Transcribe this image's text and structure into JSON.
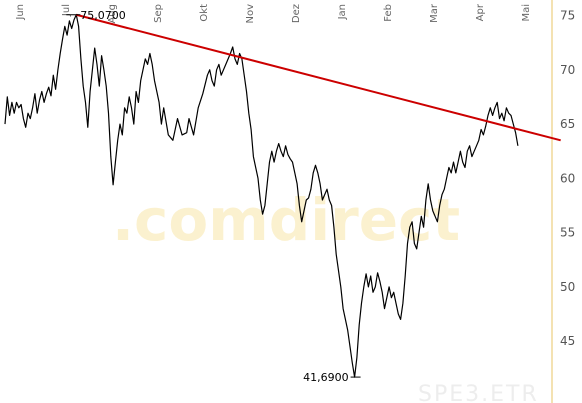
{
  "chart_data": {
    "type": "line",
    "title": "",
    "xlabel": "",
    "ylabel": "",
    "x_tick_labels": [
      "Jun",
      "Jul",
      "Aug",
      "Sep",
      "Okt",
      "Nov",
      "Dez",
      "Jan",
      "Feb",
      "Mar",
      "Apr",
      "Mai"
    ],
    "y_ticks": [
      45,
      50,
      55,
      60,
      65,
      70,
      75
    ],
    "ylim": [
      40.5,
      75.6
    ],
    "xlim": [
      0,
      12.08
    ],
    "grid": false,
    "legend": "none",
    "colors": {
      "price_line": "#000000",
      "trend_line": "#cc0000",
      "axis_line": "#f0d898"
    },
    "series": [
      {
        "values": [
          [
            0.0,
            65.0
          ],
          [
            0.05,
            67.5
          ],
          [
            0.1,
            65.8
          ],
          [
            0.15,
            67.0
          ],
          [
            0.2,
            66.0
          ],
          [
            0.25,
            67.0
          ],
          [
            0.3,
            66.5
          ],
          [
            0.35,
            66.8
          ],
          [
            0.4,
            65.5
          ],
          [
            0.45,
            64.7
          ],
          [
            0.5,
            66.0
          ],
          [
            0.55,
            65.5
          ],
          [
            0.6,
            66.5
          ],
          [
            0.65,
            67.8
          ],
          [
            0.7,
            66.0
          ],
          [
            0.75,
            67.2
          ],
          [
            0.8,
            68.0
          ],
          [
            0.85,
            67.0
          ],
          [
            0.9,
            67.8
          ],
          [
            0.95,
            68.4
          ],
          [
            1.0,
            67.6
          ],
          [
            1.05,
            69.5
          ],
          [
            1.1,
            68.2
          ],
          [
            1.15,
            70.0
          ],
          [
            1.2,
            71.5
          ],
          [
            1.25,
            72.8
          ],
          [
            1.3,
            74.0
          ],
          [
            1.35,
            73.2
          ],
          [
            1.4,
            74.5
          ],
          [
            1.45,
            73.8
          ],
          [
            1.5,
            74.6
          ],
          [
            1.55,
            75.07
          ],
          [
            1.6,
            74.0
          ],
          [
            1.65,
            71.0
          ],
          [
            1.7,
            68.5
          ],
          [
            1.75,
            67.0
          ],
          [
            1.8,
            64.7
          ],
          [
            1.85,
            68.0
          ],
          [
            1.9,
            70.0
          ],
          [
            1.95,
            72.0
          ],
          [
            2.0,
            70.5
          ],
          [
            2.05,
            68.5
          ],
          [
            2.1,
            71.3
          ],
          [
            2.15,
            70.0
          ],
          [
            2.2,
            68.5
          ],
          [
            2.25,
            66.0
          ],
          [
            2.3,
            62.0
          ],
          [
            2.35,
            59.4
          ],
          [
            2.4,
            61.5
          ],
          [
            2.45,
            63.5
          ],
          [
            2.5,
            65.0
          ],
          [
            2.55,
            64.0
          ],
          [
            2.6,
            66.5
          ],
          [
            2.65,
            66.0
          ],
          [
            2.7,
            67.5
          ],
          [
            2.75,
            66.5
          ],
          [
            2.8,
            65.0
          ],
          [
            2.85,
            68.0
          ],
          [
            2.9,
            67.0
          ],
          [
            2.95,
            69.0
          ],
          [
            3.0,
            70.0
          ],
          [
            3.05,
            71.0
          ],
          [
            3.1,
            70.5
          ],
          [
            3.15,
            71.5
          ],
          [
            3.2,
            70.5
          ],
          [
            3.25,
            69.0
          ],
          [
            3.3,
            68.0
          ],
          [
            3.35,
            67.0
          ],
          [
            3.4,
            65.0
          ],
          [
            3.45,
            66.5
          ],
          [
            3.55,
            64.0
          ],
          [
            3.65,
            63.5
          ],
          [
            3.75,
            65.5
          ],
          [
            3.85,
            64.0
          ],
          [
            3.95,
            64.2
          ],
          [
            4.0,
            65.5
          ],
          [
            4.1,
            64.0
          ],
          [
            4.2,
            66.5
          ],
          [
            4.3,
            67.8
          ],
          [
            4.4,
            69.5
          ],
          [
            4.45,
            70.0
          ],
          [
            4.5,
            69.0
          ],
          [
            4.55,
            68.5
          ],
          [
            4.6,
            70.0
          ],
          [
            4.65,
            70.5
          ],
          [
            4.7,
            69.5
          ],
          [
            4.8,
            70.5
          ],
          [
            4.9,
            71.5
          ],
          [
            4.95,
            72.1
          ],
          [
            5.0,
            71.0
          ],
          [
            5.05,
            70.5
          ],
          [
            5.1,
            71.5
          ],
          [
            5.15,
            71.0
          ],
          [
            5.2,
            69.5
          ],
          [
            5.25,
            68.0
          ],
          [
            5.3,
            66.0
          ],
          [
            5.35,
            64.5
          ],
          [
            5.4,
            62.0
          ],
          [
            5.45,
            61.0
          ],
          [
            5.5,
            60.0
          ],
          [
            5.55,
            58.0
          ],
          [
            5.6,
            56.7
          ],
          [
            5.65,
            57.5
          ],
          [
            5.7,
            59.5
          ],
          [
            5.75,
            61.5
          ],
          [
            5.8,
            62.5
          ],
          [
            5.85,
            61.5
          ],
          [
            5.9,
            62.5
          ],
          [
            5.95,
            63.2
          ],
          [
            6.0,
            62.5
          ],
          [
            6.05,
            62.0
          ],
          [
            6.1,
            63.0
          ],
          [
            6.15,
            62.2
          ],
          [
            6.2,
            61.8
          ],
          [
            6.25,
            61.5
          ],
          [
            6.3,
            60.5
          ],
          [
            6.35,
            59.5
          ],
          [
            6.4,
            57.5
          ],
          [
            6.45,
            56.0
          ],
          [
            6.5,
            57.0
          ],
          [
            6.55,
            58.0
          ],
          [
            6.6,
            58.2
          ],
          [
            6.65,
            59.0
          ],
          [
            6.7,
            60.5
          ],
          [
            6.75,
            61.2
          ],
          [
            6.8,
            60.5
          ],
          [
            6.85,
            59.5
          ],
          [
            6.9,
            58.0
          ],
          [
            6.95,
            58.5
          ],
          [
            7.0,
            59.0
          ],
          [
            7.05,
            58.0
          ],
          [
            7.1,
            57.5
          ],
          [
            7.15,
            55.5
          ],
          [
            7.2,
            53.0
          ],
          [
            7.25,
            51.5
          ],
          [
            7.3,
            50.0
          ],
          [
            7.35,
            48.0
          ],
          [
            7.4,
            47.0
          ],
          [
            7.45,
            46.0
          ],
          [
            7.5,
            44.5
          ],
          [
            7.55,
            43.0
          ],
          [
            7.6,
            41.69
          ],
          [
            7.65,
            43.5
          ],
          [
            7.7,
            46.5
          ],
          [
            7.75,
            48.5
          ],
          [
            7.8,
            50.0
          ],
          [
            7.85,
            51.2
          ],
          [
            7.9,
            50.0
          ],
          [
            7.95,
            51.0
          ],
          [
            8.0,
            49.5
          ],
          [
            8.05,
            50.0
          ],
          [
            8.1,
            51.3
          ],
          [
            8.15,
            50.5
          ],
          [
            8.2,
            49.5
          ],
          [
            8.25,
            48.0
          ],
          [
            8.3,
            49.0
          ],
          [
            8.35,
            50.0
          ],
          [
            8.4,
            49.0
          ],
          [
            8.45,
            49.5
          ],
          [
            8.5,
            48.5
          ],
          [
            8.55,
            47.5
          ],
          [
            8.6,
            47.0
          ],
          [
            8.65,
            48.5
          ],
          [
            8.7,
            51.0
          ],
          [
            8.75,
            54.0
          ],
          [
            8.8,
            55.5
          ],
          [
            8.85,
            56.0
          ],
          [
            8.9,
            54.0
          ],
          [
            8.95,
            53.5
          ],
          [
            9.0,
            55.0
          ],
          [
            9.05,
            56.5
          ],
          [
            9.1,
            55.5
          ],
          [
            9.15,
            58.0
          ],
          [
            9.2,
            59.5
          ],
          [
            9.25,
            58.0
          ],
          [
            9.3,
            57.0
          ],
          [
            9.35,
            56.5
          ],
          [
            9.4,
            56.0
          ],
          [
            9.45,
            57.5
          ],
          [
            9.5,
            58.5
          ],
          [
            9.55,
            59.0
          ],
          [
            9.6,
            60.0
          ],
          [
            9.65,
            61.0
          ],
          [
            9.7,
            60.5
          ],
          [
            9.75,
            61.5
          ],
          [
            9.8,
            60.5
          ],
          [
            9.85,
            61.5
          ],
          [
            9.9,
            62.5
          ],
          [
            9.95,
            61.5
          ],
          [
            10.0,
            61.0
          ],
          [
            10.05,
            62.5
          ],
          [
            10.1,
            63.0
          ],
          [
            10.15,
            62.0
          ],
          [
            10.2,
            62.5
          ],
          [
            10.25,
            63.0
          ],
          [
            10.3,
            63.5
          ],
          [
            10.35,
            64.5
          ],
          [
            10.4,
            64.0
          ],
          [
            10.45,
            64.8
          ],
          [
            10.5,
            65.8
          ],
          [
            10.55,
            66.5
          ],
          [
            10.6,
            65.8
          ],
          [
            10.65,
            66.5
          ],
          [
            10.7,
            67.0
          ],
          [
            10.75,
            65.5
          ],
          [
            10.8,
            66.0
          ],
          [
            10.85,
            65.3
          ],
          [
            10.9,
            66.5
          ],
          [
            10.95,
            66.0
          ],
          [
            11.0,
            65.8
          ],
          [
            11.05,
            65.0
          ],
          [
            11.1,
            64.2
          ],
          [
            11.15,
            63.0
          ]
        ]
      }
    ],
    "annotations": [
      {
        "label": "75,0700",
        "x": 1.55,
        "y": 75.07
      },
      {
        "label": "41,6900",
        "x": 7.6,
        "y": 41.69
      }
    ],
    "trend_line": {
      "start": [
        1.55,
        75.07
      ],
      "end": [
        12.08,
        63.5
      ]
    }
  },
  "watermark": {
    "brand": ".comdirect",
    "ticker": "SPE3.ETR"
  }
}
